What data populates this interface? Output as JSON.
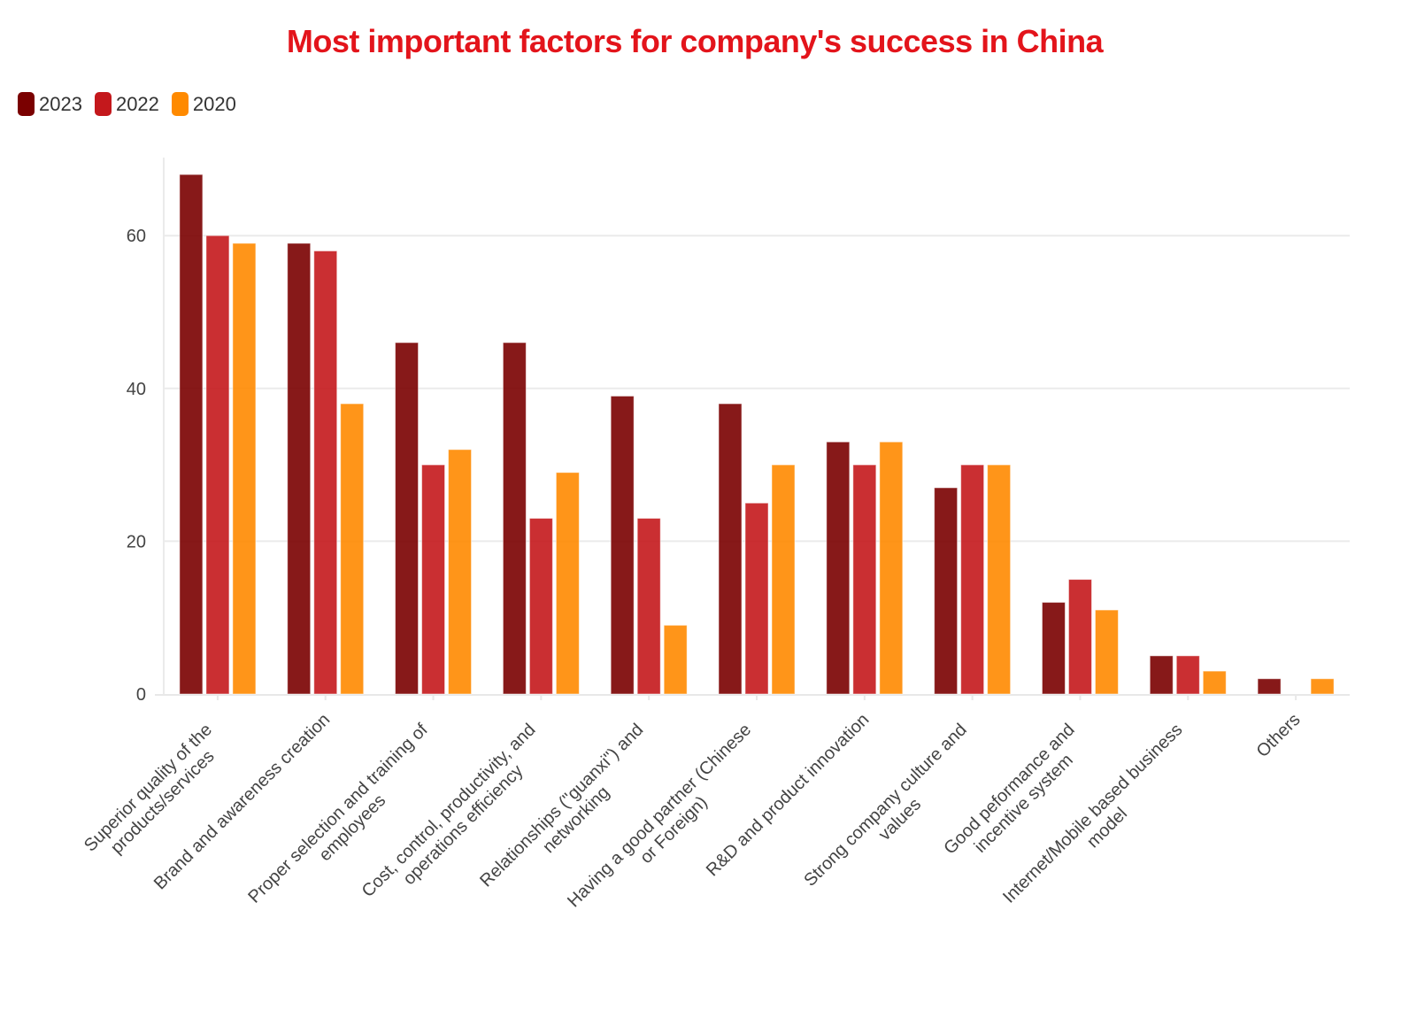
{
  "chart_data": {
    "type": "bar",
    "title": "Most important factors for company's success in China",
    "categories": [
      "Superior quality of the\nproducts/services",
      "Brand and awareness creation",
      "Proper selection and training of\nemployees",
      "Cost, control, productivity, and\noperations efficiency",
      "Relationships (\"guanxi\") and\nnetworking",
      "Having a good partner (Chinese\nor Foreign)",
      "R&D and product innovation",
      "Strong company culture and\nvalues",
      "Good peformance and\nincentive system",
      "Internet/Mobile based business\nmodel",
      "Others"
    ],
    "series": [
      {
        "name": "2023",
        "color": "#7a0000",
        "values": [
          68,
          59,
          46,
          46,
          39,
          38,
          33,
          27,
          12,
          5,
          2
        ]
      },
      {
        "name": "2022",
        "color": "#c4181c",
        "values": [
          60,
          58,
          30,
          23,
          23,
          25,
          30,
          30,
          15,
          5,
          0
        ]
      },
      {
        "name": "2020",
        "color": "#ff8a00",
        "values": [
          59,
          38,
          32,
          29,
          9,
          30,
          33,
          30,
          11,
          3,
          2
        ]
      }
    ],
    "xlabel": "",
    "ylabel": "",
    "ylim": [
      0,
      70
    ],
    "yticks": [
      0,
      20,
      40,
      60
    ],
    "grid": true,
    "legend_position": "top-left"
  }
}
